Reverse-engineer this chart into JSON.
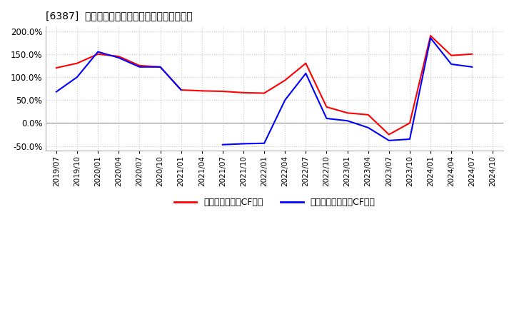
{
  "title": "[6387]  有利子負債キャッシュフロー比率の推移",
  "legend_label_red": "有利子負債営業CF比率",
  "legend_label_blue": "有利子負債フリーCF比率",
  "line_color_red": "#ff0000",
  "line_color_blue": "#0000ff",
  "background_color": "#ffffff",
  "grid_color": "#c8c8c8",
  "ylim_min": -0.6,
  "ylim_max": 2.1,
  "yticks": [
    -0.5,
    0.0,
    0.5,
    1.0,
    1.5,
    2.0
  ],
  "x_labels": [
    "2019/07",
    "2019/10",
    "2020/01",
    "2020/04",
    "2020/07",
    "2020/10",
    "2021/01",
    "2021/04",
    "2021/07",
    "2021/10",
    "2022/01",
    "2022/04",
    "2022/07",
    "2022/10",
    "2023/01",
    "2023/04",
    "2023/07",
    "2023/10",
    "2024/01",
    "2024/04",
    "2024/07",
    "2024/10"
  ],
  "red_values": [
    1.2,
    1.3,
    1.5,
    1.45,
    1.25,
    1.22,
    0.72,
    0.7,
    0.69,
    0.66,
    0.65,
    0.93,
    1.3,
    0.35,
    0.22,
    0.18,
    -0.25,
    0.0,
    1.9,
    1.47,
    1.5,
    null
  ],
  "blue_values": [
    0.68,
    1.0,
    1.55,
    1.42,
    1.22,
    1.22,
    0.72,
    null,
    -0.47,
    -0.45,
    -0.44,
    0.5,
    1.08,
    0.1,
    0.05,
    -0.1,
    -0.38,
    -0.35,
    1.85,
    1.28,
    1.22,
    null
  ]
}
